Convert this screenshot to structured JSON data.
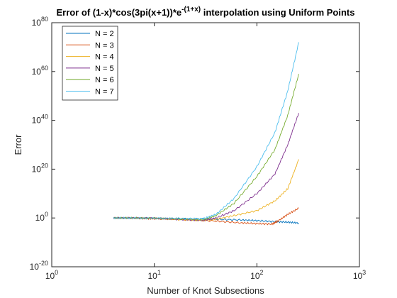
{
  "chart_data": {
    "type": "line",
    "title": {
      "prefix": "Error of (1-x)*cos(3pi(x+1))*e",
      "superscript": "-(1+x)",
      "suffix": " interpolation using Uniform Points"
    },
    "xlabel": "Number of Knot Subsections",
    "ylabel": "Error",
    "xscale": "log",
    "yscale": "log",
    "xlim": [
      1,
      1000
    ],
    "ylim": [
      1e-20,
      1e+80
    ],
    "x_ticks": [
      {
        "base": "10",
        "exp": "0",
        "value": 1
      },
      {
        "base": "10",
        "exp": "1",
        "value": 10
      },
      {
        "base": "10",
        "exp": "2",
        "value": 100
      },
      {
        "base": "10",
        "exp": "3",
        "value": 1000
      }
    ],
    "y_ticks": [
      {
        "base": "10",
        "exp": "-20",
        "value": 1e-20
      },
      {
        "base": "10",
        "exp": "0",
        "value": 1
      },
      {
        "base": "10",
        "exp": "20",
        "value": 1e+20
      },
      {
        "base": "10",
        "exp": "40",
        "value": 1e+40
      },
      {
        "base": "10",
        "exp": "60",
        "value": 1e+60
      },
      {
        "base": "10",
        "exp": "80",
        "value": 1e+80
      }
    ],
    "grid": false,
    "legend_position": "top-left",
    "series": [
      {
        "name": "N = 2",
        "color": "#0072BD",
        "x": [
          4,
          6,
          10,
          20,
          40,
          70,
          100,
          150,
          200,
          256
        ],
        "y": [
          1,
          1,
          0.8,
          0.5,
          0.3,
          0.15,
          0.08,
          0.03,
          0.02,
          0.008
        ]
      },
      {
        "name": "N = 3",
        "color": "#D95319",
        "x": [
          4,
          6,
          8,
          10,
          20,
          40,
          70,
          100,
          140,
          160,
          200,
          256
        ],
        "y": [
          1,
          1,
          0.6,
          0.5,
          0.2,
          0.05,
          0.01,
          0.005,
          0.003,
          0.05,
          30,
          10000
        ]
      },
      {
        "name": "N = 4",
        "color": "#EDB120",
        "x": [
          4,
          6,
          10,
          20,
          30,
          40,
          60,
          100,
          150,
          200,
          256
        ],
        "y": [
          1,
          1,
          0.8,
          0.2,
          0.1,
          0.3,
          10,
          1000,
          10000000.0,
          1000000000000.0,
          1e+24
        ]
      },
      {
        "name": "N = 5",
        "color": "#7E2F8E",
        "x": [
          4,
          6,
          10,
          20,
          30,
          40,
          60,
          100,
          150,
          200,
          256
        ],
        "y": [
          1,
          1,
          0.8,
          0.2,
          0.1,
          1,
          1000,
          10000000000.0,
          1e+18,
          1e+30,
          1e+43
        ]
      },
      {
        "name": "N = 6",
        "color": "#77AC30",
        "x": [
          4,
          6,
          10,
          20,
          30,
          40,
          60,
          100,
          150,
          200,
          256
        ],
        "y": [
          1,
          1,
          0.8,
          0.3,
          0.2,
          10,
          1000000.0,
          1e+17,
          1e+28,
          1e+42,
          1e+59
        ]
      },
      {
        "name": "N = 7",
        "color": "#4DBEEE",
        "x": [
          4,
          6,
          10,
          20,
          30,
          40,
          60,
          100,
          150,
          200,
          256
        ],
        "y": [
          1,
          1,
          0.8,
          0.5,
          0.5,
          30,
          100000000.0,
          1e+21,
          1e+35,
          1e+52,
          1e+72
        ]
      }
    ]
  }
}
